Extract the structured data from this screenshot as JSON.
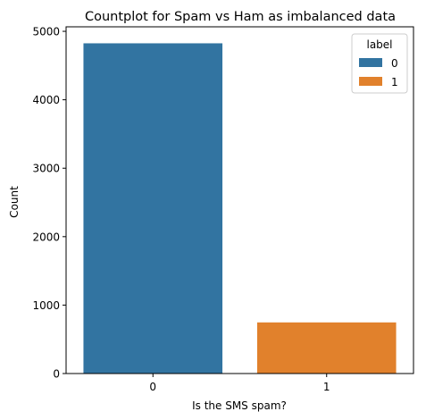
{
  "chart_data": {
    "type": "bar",
    "title": "Countplot for Spam vs Ham as imbalanced data",
    "xlabel": "Is the SMS spam?",
    "ylabel": "Count",
    "categories": [
      "0",
      "1"
    ],
    "series": [
      {
        "name": "0",
        "category": "0",
        "value": 4825,
        "color": "#3274a1"
      },
      {
        "name": "1",
        "category": "1",
        "value": 747,
        "color": "#e1812c"
      }
    ],
    "ylim": [
      0,
      5066
    ],
    "yticks": [
      0,
      1000,
      2000,
      3000,
      4000,
      5000
    ],
    "grid": false,
    "legend": {
      "title": "label",
      "position": "top-right"
    }
  }
}
